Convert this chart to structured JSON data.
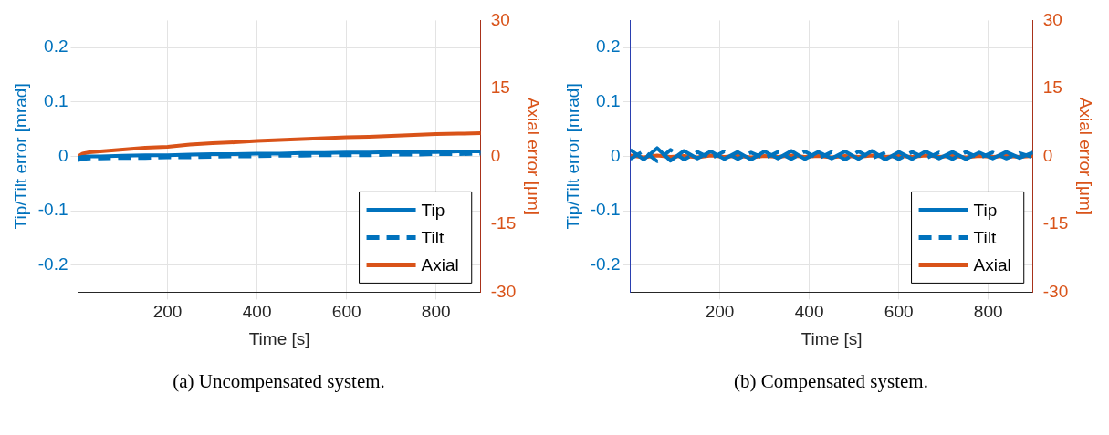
{
  "chart_data": [
    {
      "type": "line",
      "xlabel": "Time [s]",
      "ylabel": "Tip/Tilt error [mrad]",
      "y2label": "Axial error [μm]",
      "x": [
        0,
        10,
        25,
        50,
        100,
        150,
        200,
        250,
        300,
        350,
        400,
        450,
        500,
        550,
        600,
        650,
        700,
        750,
        800,
        850,
        900
      ],
      "series": [
        {
          "name": "Tip",
          "color": "#0072bd",
          "values": [
            -0.003,
            -0.001,
            0.0,
            0.0,
            0.001,
            0.002,
            0.002,
            0.003,
            0.004,
            0.004,
            0.005,
            0.005,
            0.006,
            0.006,
            0.007,
            0.007,
            0.008,
            0.008,
            0.008,
            0.009,
            0.009
          ]
        },
        {
          "name": "Tilt",
          "color": "#0072bd",
          "line_style": "dashed",
          "values": [
            -0.007,
            -0.005,
            -0.004,
            -0.004,
            -0.003,
            -0.003,
            -0.002,
            -0.002,
            -0.001,
            0.0,
            0.0,
            0.001,
            0.001,
            0.002,
            0.002,
            0.002,
            0.003,
            0.003,
            0.004,
            0.004,
            0.005
          ]
        },
        {
          "name": "Axial",
          "color": "#d95319",
          "axis": "y2",
          "values": [
            0,
            0.6,
            0.9,
            1.1,
            1.5,
            1.9,
            2.1,
            2.6,
            2.9,
            3.1,
            3.4,
            3.6,
            3.8,
            4.0,
            4.2,
            4.3,
            4.5,
            4.7,
            4.9,
            5.0,
            5.1
          ]
        }
      ],
      "xlim": [
        0,
        900
      ],
      "xticks": [
        200,
        400,
        600,
        800
      ],
      "ylim": [
        -0.25,
        0.25
      ],
      "yticks": [
        -0.2,
        -0.1,
        0,
        0.1,
        0.2
      ],
      "y2lim": [
        -30,
        30
      ],
      "y2ticks": [
        -30,
        -15,
        0,
        15,
        30
      ],
      "grid": true,
      "legend": "bottom right",
      "line_style": "solid",
      "annotations": [
        "(a) Uncompensated system."
      ]
    },
    {
      "type": "line",
      "xlabel": "Time [s]",
      "ylabel": "Tip/Tilt error [mrad]",
      "y2label": "Axial error [μm]",
      "x": [
        0,
        30,
        60,
        90,
        120,
        150,
        180,
        210,
        240,
        270,
        300,
        330,
        360,
        390,
        420,
        450,
        480,
        510,
        540,
        570,
        600,
        630,
        660,
        690,
        720,
        750,
        780,
        810,
        840,
        870,
        900
      ],
      "series": [
        {
          "name": "Tip",
          "color": "#0072bd",
          "values": [
            0.012,
            -0.006,
            0.015,
            -0.008,
            0.01,
            -0.004,
            0.009,
            -0.005,
            0.008,
            -0.006,
            0.009,
            -0.004,
            0.01,
            -0.005,
            0.008,
            -0.004,
            0.009,
            -0.005,
            0.01,
            -0.006,
            0.008,
            -0.005,
            0.009,
            -0.004,
            0.008,
            -0.005,
            0.007,
            -0.004,
            0.008,
            -0.003,
            0.007
          ]
        },
        {
          "name": "Tilt",
          "color": "#0072bd",
          "line_style": "dashed",
          "values": [
            -0.005,
            0.01,
            -0.009,
            0.012,
            -0.006,
            0.008,
            -0.004,
            0.009,
            -0.005,
            0.007,
            -0.004,
            0.008,
            -0.005,
            0.009,
            -0.004,
            0.008,
            -0.006,
            0.009,
            -0.004,
            0.007,
            -0.005,
            0.008,
            -0.004,
            0.007,
            -0.005,
            0.008,
            -0.003,
            0.007,
            -0.004,
            0.006,
            -0.002
          ]
        },
        {
          "name": "Axial",
          "color": "#d95319",
          "axis": "y2",
          "values": [
            0.2,
            -0.2,
            0.2,
            -0.1,
            0.1,
            -0.2,
            0.2,
            -0.1,
            0.1,
            -0.2,
            0.1,
            -0.1,
            0.2,
            -0.1,
            0.1,
            -0.2,
            0.1,
            -0.1,
            0.2,
            -0.1,
            0.1,
            -0.1,
            0.2,
            -0.1,
            0.1,
            -0.2,
            0.1,
            -0.1,
            0.1,
            -0.1,
            0.1
          ]
        }
      ],
      "xlim": [
        0,
        900
      ],
      "xticks": [
        200,
        400,
        600,
        800
      ],
      "ylim": [
        -0.25,
        0.25
      ],
      "yticks": [
        -0.2,
        -0.1,
        0,
        0.1,
        0.2
      ],
      "y2lim": [
        -30,
        30
      ],
      "y2ticks": [
        -30,
        -15,
        0,
        15,
        30
      ],
      "grid": true,
      "legend": "bottom right",
      "line_style": "solid",
      "annotations": [
        "(b) Compensated system."
      ]
    }
  ]
}
